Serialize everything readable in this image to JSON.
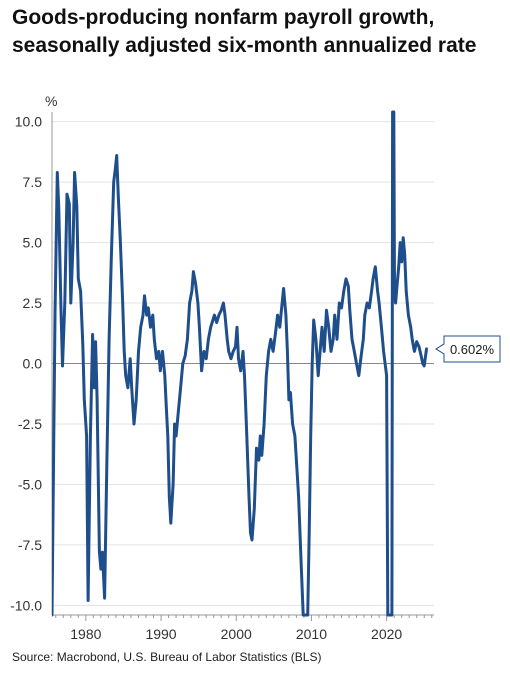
{
  "chart_data": {
    "type": "line",
    "title": "Goods-producing nonfarm payroll growth, seasonally adjusted six-month annualized rate",
    "ylabel": "%",
    "xlabel": "",
    "xlim": [
      1975.5,
      2026.3
    ],
    "ylim": [
      -10.4,
      10.4
    ],
    "grid": true,
    "zero_line": true,
    "yticks": [
      10.0,
      7.5,
      5.0,
      2.5,
      0.0,
      -2.5,
      -5.0,
      -7.5,
      -10.0
    ],
    "ytick_labels": [
      "10.0",
      "7.5",
      "5.0",
      "2.5",
      "0.0",
      "-2.5",
      "-5.0",
      "-7.5",
      "-10.0"
    ],
    "xticks": [
      1980,
      1990,
      2000,
      2010,
      2020
    ],
    "xtick_labels": [
      "1980",
      "1990",
      "2000",
      "2010",
      "2020"
    ],
    "line_color": "#1f4e8c",
    "annotation": {
      "label": "0.602%",
      "x": 2025.3,
      "y": 0.602
    },
    "series": [
      {
        "values": [
          [
            1975.5,
            -10.4
          ],
          [
            1975.9,
            2.0
          ],
          [
            1976.2,
            7.9
          ],
          [
            1976.4,
            6.4
          ],
          [
            1976.7,
            2.2
          ],
          [
            1976.9,
            -0.1
          ],
          [
            1977.2,
            2.5
          ],
          [
            1977.5,
            7.0
          ],
          [
            1977.8,
            6.6
          ],
          [
            1978.0,
            2.5
          ],
          [
            1978.3,
            5.0
          ],
          [
            1978.5,
            7.9
          ],
          [
            1978.8,
            6.5
          ],
          [
            1979.0,
            3.5
          ],
          [
            1979.3,
            3.0
          ],
          [
            1979.6,
            0.8
          ],
          [
            1979.8,
            -1.5
          ],
          [
            1980.1,
            -3.0
          ],
          [
            1980.3,
            -9.8
          ],
          [
            1980.6,
            -3.0
          ],
          [
            1980.9,
            1.2
          ],
          [
            1981.1,
            -1.0
          ],
          [
            1981.3,
            0.9
          ],
          [
            1981.5,
            -1.5
          ],
          [
            1981.8,
            -7.8
          ],
          [
            1982.0,
            -8.5
          ],
          [
            1982.2,
            -7.8
          ],
          [
            1982.5,
            -9.7
          ],
          [
            1982.8,
            -4.0
          ],
          [
            1983.1,
            1.0
          ],
          [
            1983.4,
            4.5
          ],
          [
            1983.7,
            7.5
          ],
          [
            1983.9,
            8.0
          ],
          [
            1984.1,
            8.6
          ],
          [
            1984.3,
            7.0
          ],
          [
            1984.6,
            5.0
          ],
          [
            1984.9,
            2.5
          ],
          [
            1985.1,
            0.5
          ],
          [
            1985.3,
            -0.5
          ],
          [
            1985.6,
            -1.0
          ],
          [
            1985.9,
            0.2
          ],
          [
            1986.1,
            -1.0
          ],
          [
            1986.4,
            -2.5
          ],
          [
            1986.7,
            -1.5
          ],
          [
            1987.0,
            0.5
          ],
          [
            1987.3,
            1.5
          ],
          [
            1987.6,
            2.0
          ],
          [
            1987.8,
            2.8
          ],
          [
            1988.1,
            2.0
          ],
          [
            1988.3,
            2.3
          ],
          [
            1988.6,
            1.5
          ],
          [
            1988.9,
            2.0
          ],
          [
            1989.1,
            1.0
          ],
          [
            1989.4,
            0.2
          ],
          [
            1989.7,
            0.5
          ],
          [
            1989.9,
            -0.3
          ],
          [
            1990.2,
            0.5
          ],
          [
            1990.5,
            -0.5
          ],
          [
            1990.7,
            -1.8
          ],
          [
            1990.9,
            -3.0
          ],
          [
            1991.1,
            -5.5
          ],
          [
            1991.3,
            -6.6
          ],
          [
            1991.6,
            -5.0
          ],
          [
            1991.8,
            -2.5
          ],
          [
            1992.0,
            -3.0
          ],
          [
            1992.3,
            -2.0
          ],
          [
            1992.6,
            -1.0
          ],
          [
            1992.9,
            0.0
          ],
          [
            1993.2,
            0.3
          ],
          [
            1993.5,
            1.0
          ],
          [
            1993.8,
            2.5
          ],
          [
            1994.1,
            3.0
          ],
          [
            1994.3,
            3.8
          ],
          [
            1994.6,
            3.3
          ],
          [
            1994.9,
            2.5
          ],
          [
            1995.1,
            1.5
          ],
          [
            1995.4,
            -0.3
          ],
          [
            1995.7,
            0.5
          ],
          [
            1996.0,
            0.2
          ],
          [
            1996.3,
            1.0
          ],
          [
            1996.6,
            1.5
          ],
          [
            1996.9,
            1.8
          ],
          [
            1997.1,
            2.0
          ],
          [
            1997.4,
            1.7
          ],
          [
            1997.7,
            2.0
          ],
          [
            1998.0,
            2.2
          ],
          [
            1998.3,
            2.5
          ],
          [
            1998.5,
            2.0
          ],
          [
            1998.8,
            1.0
          ],
          [
            1999.0,
            0.5
          ],
          [
            1999.3,
            0.2
          ],
          [
            1999.6,
            0.5
          ],
          [
            1999.9,
            0.7
          ],
          [
            2000.1,
            1.5
          ],
          [
            2000.3,
            0.2
          ],
          [
            2000.6,
            -0.3
          ],
          [
            2000.9,
            0.5
          ],
          [
            2001.1,
            -0.5
          ],
          [
            2001.4,
            -3.0
          ],
          [
            2001.7,
            -5.5
          ],
          [
            2001.9,
            -7.0
          ],
          [
            2002.1,
            -7.3
          ],
          [
            2002.4,
            -6.0
          ],
          [
            2002.7,
            -3.5
          ],
          [
            2003.0,
            -4.0
          ],
          [
            2003.2,
            -3.0
          ],
          [
            2003.4,
            -3.8
          ],
          [
            2003.7,
            -2.5
          ],
          [
            2004.0,
            -0.5
          ],
          [
            2004.3,
            0.5
          ],
          [
            2004.6,
            1.0
          ],
          [
            2004.9,
            0.5
          ],
          [
            2005.2,
            1.2
          ],
          [
            2005.5,
            2.0
          ],
          [
            2005.8,
            1.5
          ],
          [
            2006.0,
            2.2
          ],
          [
            2006.3,
            3.1
          ],
          [
            2006.6,
            2.0
          ],
          [
            2006.8,
            0.5
          ],
          [
            2007.0,
            -1.5
          ],
          [
            2007.2,
            -1.2
          ],
          [
            2007.5,
            -2.5
          ],
          [
            2007.8,
            -3.0
          ],
          [
            2008.0,
            -4.0
          ],
          [
            2008.3,
            -5.5
          ],
          [
            2008.6,
            -8.0
          ],
          [
            2008.9,
            -10.4
          ],
          [
            2009.5,
            -10.4
          ],
          [
            2009.7,
            -7.0
          ],
          [
            2009.9,
            -3.0
          ],
          [
            2010.1,
            0.0
          ],
          [
            2010.3,
            1.8
          ],
          [
            2010.6,
            1.0
          ],
          [
            2010.9,
            -0.5
          ],
          [
            2011.1,
            0.3
          ],
          [
            2011.4,
            1.5
          ],
          [
            2011.7,
            0.5
          ],
          [
            2012.0,
            2.2
          ],
          [
            2012.3,
            1.5
          ],
          [
            2012.6,
            0.5
          ],
          [
            2012.9,
            1.0
          ],
          [
            2013.1,
            2.0
          ],
          [
            2013.4,
            1.0
          ],
          [
            2013.7,
            2.5
          ],
          [
            2014.0,
            2.3
          ],
          [
            2014.3,
            3.0
          ],
          [
            2014.6,
            3.5
          ],
          [
            2014.9,
            3.2
          ],
          [
            2015.1,
            2.2
          ],
          [
            2015.4,
            1.0
          ],
          [
            2015.7,
            0.5
          ],
          [
            2016.0,
            0.0
          ],
          [
            2016.3,
            -0.5
          ],
          [
            2016.6,
            0.3
          ],
          [
            2016.9,
            1.0
          ],
          [
            2017.1,
            2.0
          ],
          [
            2017.4,
            2.5
          ],
          [
            2017.7,
            2.3
          ],
          [
            2018.0,
            3.0
          ],
          [
            2018.2,
            3.5
          ],
          [
            2018.5,
            4.0
          ],
          [
            2018.8,
            3.0
          ],
          [
            2019.0,
            2.5
          ],
          [
            2019.3,
            1.5
          ],
          [
            2019.6,
            0.5
          ],
          [
            2019.8,
            0.0
          ],
          [
            2020.0,
            -0.5
          ],
          [
            2020.15,
            -10.4
          ],
          [
            2020.7,
            -10.4
          ],
          [
            2020.8,
            10.4
          ],
          [
            2020.95,
            10.4
          ],
          [
            2021.05,
            3.0
          ],
          [
            2021.2,
            2.5
          ],
          [
            2021.4,
            3.3
          ],
          [
            2021.6,
            4.0
          ],
          [
            2021.8,
            5.0
          ],
          [
            2022.0,
            4.2
          ],
          [
            2022.2,
            5.2
          ],
          [
            2022.4,
            4.5
          ],
          [
            2022.6,
            3.0
          ],
          [
            2022.9,
            2.0
          ],
          [
            2023.2,
            1.5
          ],
          [
            2023.4,
            1.0
          ],
          [
            2023.7,
            0.5
          ],
          [
            2024.0,
            0.9
          ],
          [
            2024.3,
            0.7
          ],
          [
            2024.6,
            0.3
          ],
          [
            2024.8,
            0.0
          ],
          [
            2025.0,
            -0.1
          ],
          [
            2025.3,
            0.602
          ]
        ]
      }
    ]
  },
  "source": "Source: Macrobond, U.S. Bureau of Labor Statistics (BLS)"
}
